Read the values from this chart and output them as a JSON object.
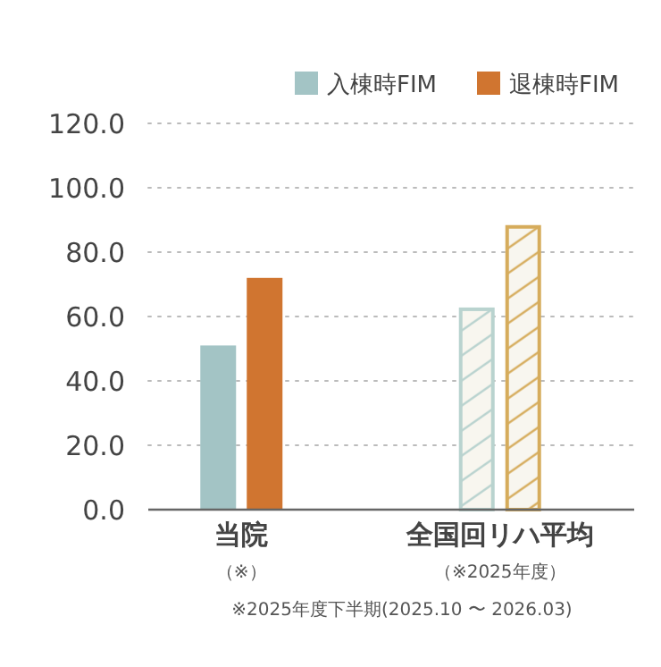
{
  "chart_data": {
    "type": "bar",
    "categories": [
      "当院",
      "全国回リハ平均"
    ],
    "series": [
      {
        "name": "入棟時FIM",
        "color": "#a3c4c5",
        "colors": [
          "#a3c4c5",
          "#b9d3cf"
        ],
        "values": [
          51,
          62.8
        ]
      },
      {
        "name": "退棟時FIM",
        "color": "#d07530",
        "colors": [
          "#d07530",
          "#d6ac5c"
        ],
        "values": [
          72,
          88.4
        ]
      }
    ],
    "ylim": [
      0,
      120
    ],
    "yticks": [
      {
        "value": 0,
        "label": "0.0"
      },
      {
        "value": 20,
        "label": "20.0"
      },
      {
        "value": 40,
        "label": "40.0"
      },
      {
        "value": 60,
        "label": "60.0"
      },
      {
        "value": 80,
        "label": "80.0"
      },
      {
        "value": 100,
        "label": "100.0"
      },
      {
        "value": 120,
        "label": "120.0"
      }
    ],
    "grid": "y",
    "legend": "top right",
    "annotations": [
      "（※）",
      "（※2025年度）",
      "※2025年度下半期(2025.10 〜 2026.03)"
    ]
  }
}
